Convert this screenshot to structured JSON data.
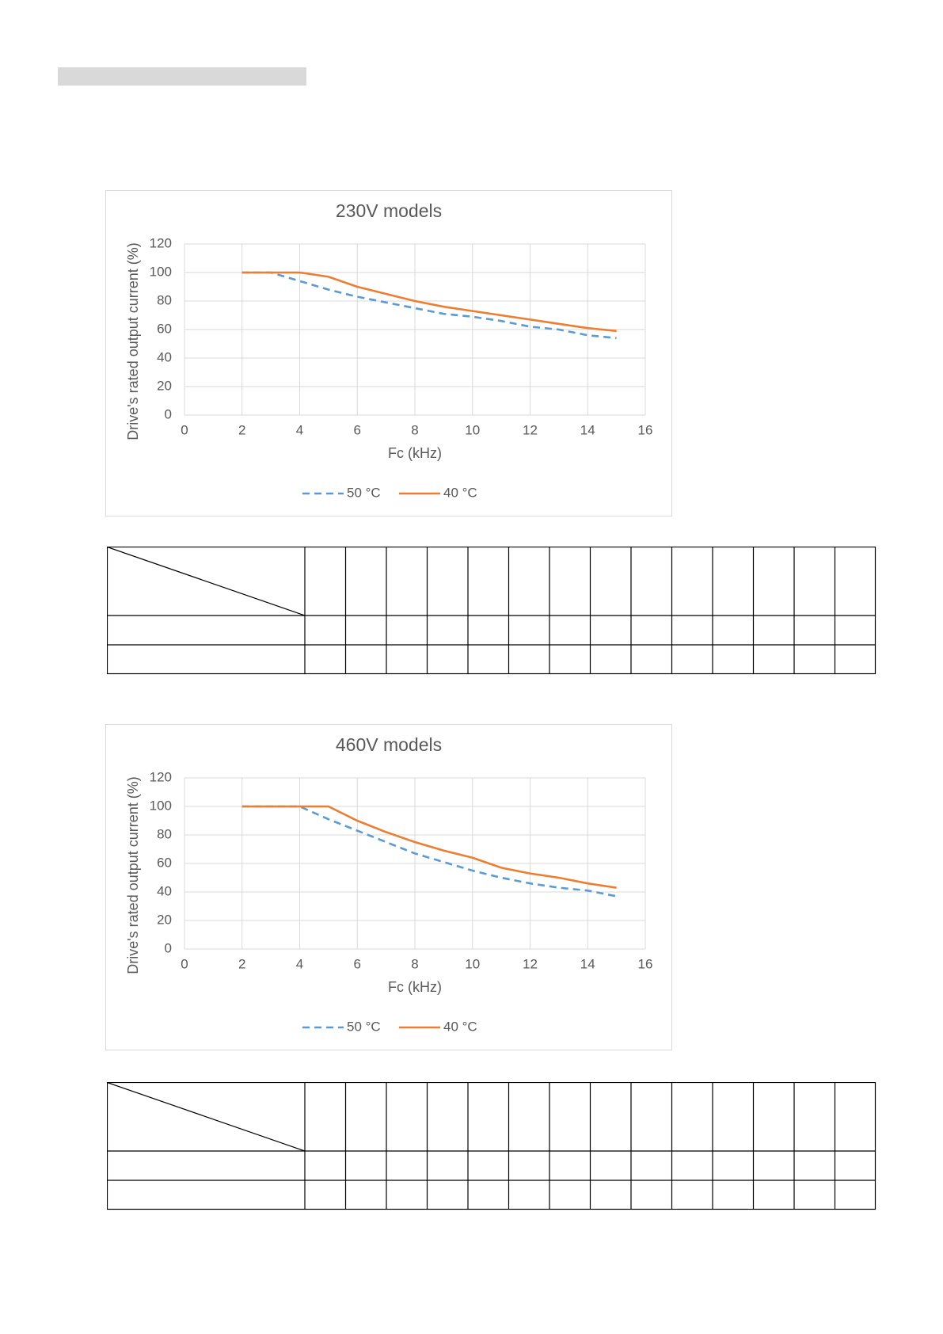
{
  "chart_data": [
    {
      "type": "line",
      "title": "230V models",
      "x_label": "Fc (kHz)",
      "y_label": "Drive's rated output current (%)",
      "x": [
        2,
        3,
        4,
        5,
        6,
        7,
        8,
        9,
        10,
        11,
        12,
        13,
        14,
        15
      ],
      "series": [
        {
          "name": "50 °C",
          "color": "#5b9bd5",
          "line_style": "dashed",
          "values": [
            100,
            100,
            94,
            88,
            83,
            79,
            75,
            71,
            69,
            66,
            62,
            60,
            56,
            54
          ]
        },
        {
          "name": "40 °C",
          "color": "#ed7d31",
          "line_style": "solid",
          "values": [
            100,
            100,
            100,
            97,
            90,
            85,
            80,
            76,
            73,
            70,
            67,
            64,
            61,
            59
          ]
        }
      ],
      "xlim": [
        0,
        16
      ],
      "xticks": [
        0,
        2,
        4,
        6,
        8,
        10,
        12,
        14,
        16
      ],
      "ylim": [
        0,
        120
      ],
      "yticks": [
        0,
        20,
        40,
        60,
        80,
        100,
        120
      ],
      "grid": true,
      "legend": "bottom"
    },
    {
      "type": "line",
      "title": "460V models",
      "x_label": "Fc (kHz)",
      "y_label": "Drive's rated output current (%)",
      "x": [
        2,
        3,
        4,
        5,
        6,
        7,
        8,
        9,
        10,
        11,
        12,
        13,
        14,
        15
      ],
      "series": [
        {
          "name": "50 °C",
          "color": "#5b9bd5",
          "line_style": "dashed",
          "values": [
            100,
            100,
            100,
            91,
            83,
            75,
            67,
            61,
            55,
            50,
            46,
            43,
            41,
            37
          ]
        },
        {
          "name": "40 °C",
          "color": "#ed7d31",
          "line_style": "solid",
          "values": [
            100,
            100,
            100,
            100,
            90,
            82,
            75,
            69,
            64,
            57,
            53,
            50,
            46,
            43
          ]
        }
      ],
      "xlim": [
        0,
        16
      ],
      "xticks": [
        0,
        2,
        4,
        6,
        8,
        10,
        12,
        14,
        16
      ],
      "ylim": [
        0,
        120
      ],
      "yticks": [
        0,
        20,
        40,
        60,
        80,
        100,
        120
      ],
      "grid": true,
      "legend": "bottom"
    }
  ]
}
